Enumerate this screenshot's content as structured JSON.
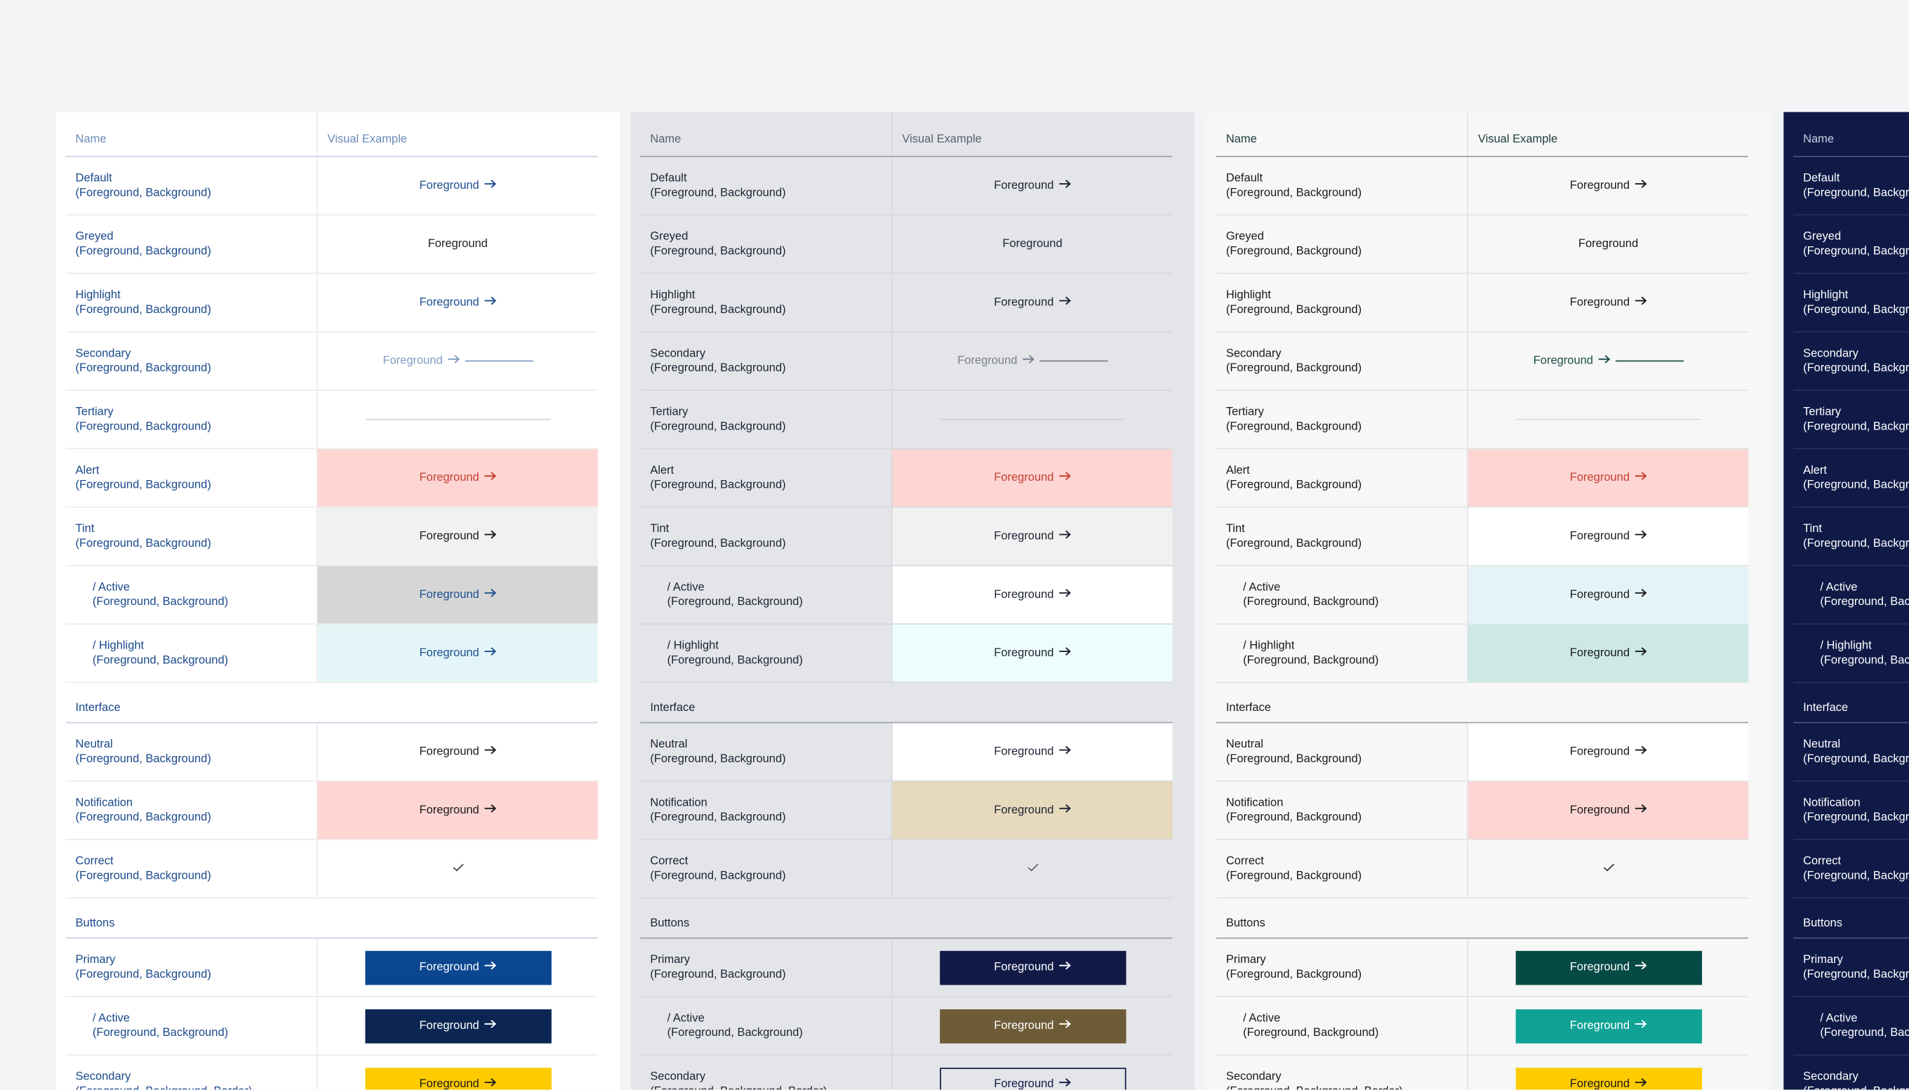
{
  "panels": [
    {
      "headers": [
        "Name",
        "Visual Example"
      ],
      "bg": "#ffffff",
      "name_color": "#1b4a8c",
      "header_color": "#6b8cbb",
      "rule": "#c8d3e3",
      "line": "#ececec",
      "rows": [
        {
          "name": "Default",
          "sub": "(Foreground, Background)",
          "kind": "arrow",
          "ex": "Foreground",
          "fg": "#1d4f91"
        },
        {
          "name": "Greyed",
          "sub": "(Foreground, Background)",
          "kind": "plain",
          "ex": "Foreground",
          "fg": "#222222"
        },
        {
          "name": "Highlight",
          "sub": "(Foreground, Background)",
          "kind": "arrow",
          "ex": "Foreground",
          "fg": "#1d4f91"
        },
        {
          "name": "Secondary",
          "sub": "(Foreground, Background)",
          "kind": "secondary",
          "ex": "Foreground",
          "fg": "#7f9cc4"
        },
        {
          "name": "Tertiary",
          "sub": "(Foreground, Background)",
          "kind": "tertiary",
          "fg": "#d0d7e2"
        },
        {
          "name": "Alert",
          "sub": "(Foreground, Background)",
          "kind": "arrow",
          "ex": "Foreground",
          "fg": "#c8402f",
          "bg": "#fdd5d3"
        },
        {
          "name": "Tint",
          "sub": "(Foreground, Background)",
          "kind": "arrow",
          "ex": "Foreground",
          "fg": "#1a1a1a",
          "bg": "#f1f1f1"
        },
        {
          "name": "/ Active",
          "sub": "(Foreground, Background)",
          "indent": true,
          "kind": "arrow",
          "ex": "Foreground",
          "fg": "#1d4f91",
          "bg": "#d6d6d6"
        },
        {
          "name": "/ Highlight",
          "sub": "(Foreground, Background)",
          "indent": true,
          "kind": "arrow",
          "ex": "Foreground",
          "fg": "#1d4f91",
          "bg": "#e4f5f8"
        },
        {
          "section": "Interface"
        },
        {
          "name": "Neutral",
          "sub": "(Foreground, Background)",
          "kind": "arrow",
          "ex": "Foreground",
          "fg": "#1a1a1a"
        },
        {
          "name": "Notification",
          "sub": "(Foreground, Background)",
          "kind": "arrow",
          "ex": "Foreground",
          "fg": "#1a1a1a",
          "bg": "#fdd5d3"
        },
        {
          "name": "Correct",
          "sub": "(Foreground, Background)",
          "kind": "check",
          "fg": "#444444"
        },
        {
          "section": "Buttons"
        },
        {
          "name": "Primary",
          "sub": "(Foreground, Background)",
          "kind": "button",
          "ex": "Foreground",
          "fg": "#ffffff",
          "bg": "#0b4690"
        },
        {
          "name": "/ Active",
          "sub": "(Foreground, Background)",
          "indent": true,
          "kind": "button",
          "ex": "Foreground",
          "fg": "#ffffff",
          "bg": "#0c2653"
        },
        {
          "name": "Secondary",
          "sub": "(Foreground, Background, Border)",
          "kind": "button",
          "ex": "Foreground",
          "fg": "#1a1a1a",
          "bg": "#fdcb00"
        }
      ]
    },
    {
      "headers": [
        "Name",
        "Visual Example"
      ],
      "bg": "#e4e5e9",
      "name_color": "#1e2333",
      "header_color": "#5c6070",
      "rule": "#9ea2ad",
      "line": "#d6d8dd",
      "rows": [
        {
          "name": "Default",
          "sub": "(Foreground, Background)",
          "kind": "arrow",
          "ex": "Foreground",
          "fg": "#1e2333"
        },
        {
          "name": "Greyed",
          "sub": "(Foreground, Background)",
          "kind": "plain",
          "ex": "Foreground",
          "fg": "#1e2333"
        },
        {
          "name": "Highlight",
          "sub": "(Foreground, Background)",
          "kind": "arrow",
          "ex": "Foreground",
          "fg": "#1e2333"
        },
        {
          "name": "Secondary",
          "sub": "(Foreground, Background)",
          "kind": "secondary",
          "ex": "Foreground",
          "fg": "#7b7f8c"
        },
        {
          "name": "Tertiary",
          "sub": "(Foreground, Background)",
          "kind": "tertiary",
          "fg": "#cfd1d6"
        },
        {
          "name": "Alert",
          "sub": "(Foreground, Background)",
          "kind": "arrow",
          "ex": "Foreground",
          "fg": "#c8402f",
          "bg": "#fdd5d3"
        },
        {
          "name": "Tint",
          "sub": "(Foreground, Background)",
          "kind": "arrow",
          "ex": "Foreground",
          "fg": "#1e2333",
          "bg": "#f1f1f1"
        },
        {
          "name": "/ Active",
          "sub": "(Foreground, Background)",
          "indent": true,
          "kind": "arrow",
          "ex": "Foreground",
          "fg": "#1e2333",
          "bg": "#ffffff"
        },
        {
          "name": "/ Highlight",
          "sub": "(Foreground, Background)",
          "indent": true,
          "kind": "arrow",
          "ex": "Foreground",
          "fg": "#1e2333",
          "bg": "#edfdfb"
        },
        {
          "section": "Interface"
        },
        {
          "name": "Neutral",
          "sub": "(Foreground, Background)",
          "kind": "arrow",
          "ex": "Foreground",
          "fg": "#1e2333",
          "bg": "#ffffff"
        },
        {
          "name": "Notification",
          "sub": "(Foreground, Background)",
          "kind": "arrow",
          "ex": "Foreground",
          "fg": "#1e2333",
          "bg": "#e6d9bc"
        },
        {
          "name": "Correct",
          "sub": "(Foreground, Background)",
          "kind": "check",
          "fg": "#666666"
        },
        {
          "section": "Buttons"
        },
        {
          "name": "Primary",
          "sub": "(Foreground, Background)",
          "kind": "button",
          "ex": "Foreground",
          "fg": "#ffffff",
          "bg": "#111a47"
        },
        {
          "name": "/ Active",
          "sub": "(Foreground, Background)",
          "indent": true,
          "kind": "button",
          "ex": "Foreground",
          "fg": "#ffffff",
          "bg": "#6e5c38"
        },
        {
          "name": "Secondary",
          "sub": "(Foreground, Background, Border)",
          "kind": "button",
          "ex": "Foreground",
          "fg": "#111a47",
          "border": "#111a47"
        }
      ]
    },
    {
      "headers": [
        "Name",
        "Visual Example"
      ],
      "bg": "#f7f7f7",
      "name_color": "#1a1a1a",
      "header_color": "#1a3c3a",
      "rule": "#9aa3a2",
      "line": "#e4e4e4",
      "rows": [
        {
          "name": "Default",
          "sub": "(Foreground, Background)",
          "kind": "arrow",
          "ex": "Foreground",
          "fg": "#1a1a1a"
        },
        {
          "name": "Greyed",
          "sub": "(Foreground, Background)",
          "kind": "plain",
          "ex": "Foreground",
          "fg": "#1a1a1a"
        },
        {
          "name": "Highlight",
          "sub": "(Foreground, Background)",
          "kind": "arrow",
          "ex": "Foreground",
          "fg": "#1a1a1a"
        },
        {
          "name": "Secondary",
          "sub": "(Foreground, Background)",
          "kind": "secondary",
          "ex": "Foreground",
          "fg": "#1d4f4a"
        },
        {
          "name": "Tertiary",
          "sub": "(Foreground, Background)",
          "kind": "tertiary",
          "fg": "#d9dcdc"
        },
        {
          "name": "Alert",
          "sub": "(Foreground, Background)",
          "kind": "arrow",
          "ex": "Foreground",
          "fg": "#c8402f",
          "bg": "#fdd5d3"
        },
        {
          "name": "Tint",
          "sub": "(Foreground, Background)",
          "kind": "arrow",
          "ex": "Foreground",
          "fg": "#1a1a1a",
          "bg": "#ffffff"
        },
        {
          "name": "/ Active",
          "sub": "(Foreground, Background)",
          "indent": true,
          "kind": "arrow",
          "ex": "Foreground",
          "fg": "#1a1a1a",
          "bg": "#e4f3f7"
        },
        {
          "name": "/ Highlight",
          "sub": "(Foreground, Background)",
          "indent": true,
          "kind": "arrow",
          "ex": "Foreground",
          "fg": "#1a1a1a",
          "bg": "#cce9e5"
        },
        {
          "section": "Interface"
        },
        {
          "name": "Neutral",
          "sub": "(Foreground, Background)",
          "kind": "arrow",
          "ex": "Foreground",
          "fg": "#1a1a1a",
          "bg": "#ffffff"
        },
        {
          "name": "Notification",
          "sub": "(Foreground, Background)",
          "kind": "arrow",
          "ex": "Foreground",
          "fg": "#1a1a1a",
          "bg": "#fdd5d3"
        },
        {
          "name": "Correct",
          "sub": "(Foreground, Background)",
          "kind": "check",
          "fg": "#333333"
        },
        {
          "section": "Buttons"
        },
        {
          "name": "Primary",
          "sub": "(Foreground, Background)",
          "kind": "button",
          "ex": "Foreground",
          "fg": "#ffffff",
          "bg": "#064a45"
        },
        {
          "name": "/ Active",
          "sub": "(Foreground, Background)",
          "indent": true,
          "kind": "button",
          "ex": "Foreground",
          "fg": "#ffffff",
          "bg": "#10a395"
        },
        {
          "name": "Secondary",
          "sub": "(Foreground, Background, Border)",
          "kind": "button",
          "ex": "Foreground",
          "fg": "#1a1a1a",
          "bg": "#fdcb00"
        }
      ]
    },
    {
      "headers": [
        "Name"
      ],
      "bg": "#0f1a47",
      "name_color": "#ffffff",
      "header_color": "#c9cde0",
      "rule": "#4a5377",
      "line": "#28315a",
      "rows": [
        {
          "name": "Default",
          "sub": "(Foreground, Background)"
        },
        {
          "name": "Greyed",
          "sub": "(Foreground, Background)"
        },
        {
          "name": "Highlight",
          "sub": "(Foreground, Background)"
        },
        {
          "name": "Secondary",
          "sub": "(Foreground, Background)"
        },
        {
          "name": "Tertiary",
          "sub": "(Foreground, Background)"
        },
        {
          "name": "Alert",
          "sub": "(Foreground, Background)"
        },
        {
          "name": "Tint",
          "sub": "(Foreground, Background)"
        },
        {
          "name": "/ Active",
          "sub": "(Foreground, Background)",
          "indent": true
        },
        {
          "name": "/ Highlight",
          "sub": "(Foreground, Background)",
          "indent": true
        },
        {
          "section": "Interface"
        },
        {
          "name": "Neutral",
          "sub": "(Foreground, Background)"
        },
        {
          "name": "Notification",
          "sub": "(Foreground, Background)"
        },
        {
          "name": "Correct",
          "sub": "(Foreground, Background)"
        },
        {
          "section": "Buttons"
        },
        {
          "name": "Primary",
          "sub": "(Foreground, Background)"
        },
        {
          "name": "/ Active",
          "sub": "(Foreground, Background)",
          "indent": true
        },
        {
          "name": "Secondary",
          "sub": "(Foreground, Background, Border)"
        }
      ]
    }
  ]
}
